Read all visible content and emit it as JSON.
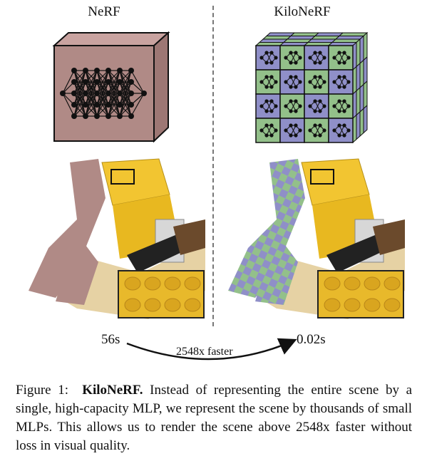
{
  "panels": {
    "left_title": "NeRF",
    "right_title": "KiloNeRF"
  },
  "timing": {
    "left": "56s",
    "right": "0.02s",
    "speedup": "2548x faster"
  },
  "caption": {
    "label": "Figure 1:",
    "bold": "KiloNeRF.",
    "text": "Instead of representing the entire scene by a single, high-capacity MLP, we represent the scene by thousands of small MLPs. This allows us to render the scene above 2548x faster without loss in visual quality."
  },
  "colors": {
    "nerf_cube": "#b08a86",
    "kilo_purple": "#8f8fc8",
    "kilo_green": "#93c08a",
    "lego_yellow": "#f2c531",
    "lego_base": "#e6d2a4"
  }
}
